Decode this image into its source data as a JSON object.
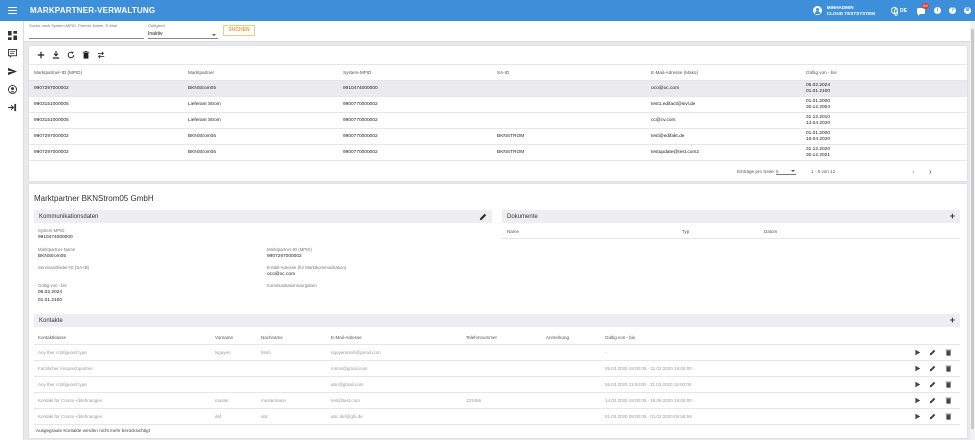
{
  "header": {
    "title": "MARKPARTNER-VERWALTUNG",
    "user_name": "MINHADMIN",
    "user_system": "CLOUD TESTSYSTEM",
    "language": "DE",
    "notification_count": "64"
  },
  "filter": {
    "search_label": "Suche nach System-MPID, Partner-Name, E-Mail",
    "search_value": "",
    "validity_label": "Gültigkeit",
    "validity_value": "Inaktiv",
    "search_button": "SUCHEN"
  },
  "grid": {
    "columns": [
      "Marktpartner-ID (MPID)",
      "Marktpartner",
      "System-MPID",
      "SA-ID",
      "E-Mail-Adresse (Mako)",
      "Gültig von - bis"
    ],
    "rows": [
      {
        "mpid": "9907297000002",
        "partner": "BKNStrom05",
        "system_mpid": "9910474000000",
        "sa_id": "",
        "email": "oco@oc.com",
        "valid_from": "06.02.2024",
        "valid_to": "01.01.2100"
      },
      {
        "mpid": "9903151000005",
        "partner": "Lieferant Strom",
        "system_mpid": "9900770000002",
        "sa_id": "",
        "email": "test1.edifact@sivl.de",
        "valid_from": "01.01.2000",
        "valid_to": "30.12.2004"
      },
      {
        "mpid": "9903151000005",
        "partner": "Lieferant Strom",
        "system_mpid": "9900770000002",
        "sa_id": "",
        "email": "cc@cv.com",
        "valid_from": "31.12.2010",
        "valid_to": "14.04.2020"
      },
      {
        "mpid": "9907297000002",
        "partner": "BKNStrom05",
        "system_mpid": "9900770000002",
        "sa_id": "BKNSTROM",
        "email": "test@edifakt.de",
        "valid_from": "01.01.2000",
        "valid_to": "16.04.2020"
      },
      {
        "mpid": "9907297000002",
        "partner": "BKNStrom05",
        "system_mpid": "9900770000002",
        "sa_id": "BKNSTROM",
        "email": "testupdate@test.com2",
        "valid_from": "31.12.2020",
        "valid_to": "30.12.2021"
      }
    ],
    "pager": {
      "per_page_label": "Einträge pro Seite:",
      "per_page_value": "5",
      "range": "1 - 5 von 12"
    }
  },
  "detail": {
    "title": "Marktpartner BKNStrom05 GmbH",
    "comm_header": "Kommunikationsdaten",
    "fields": {
      "system_mpid_label": "System-MPID",
      "system_mpid_value": "9910474000000",
      "partner_name_label": "Marktpartner-Name",
      "partner_name_value": "BKNStrom05",
      "partner_id_label": "Marktpartner-ID (MPID)",
      "partner_id_value": "9907297000002",
      "sa_label": "Serviceanbieter-ID (SA-ID)",
      "sa_value": "",
      "email_label": "E-Mail-Adresse (für Marktkommunikation)",
      "email_value": "oco@oc.com",
      "valid_label": "Gültig von - bis",
      "valid_from": "06.02.2024",
      "valid_to": "01.01.2100",
      "rules_label": "Kommunikationsvorgaben"
    },
    "docs_header": "Dokumente",
    "docs_columns": [
      "Name",
      "Typ",
      "Datum"
    ],
    "contacts_header": "Kontakte",
    "contacts_columns": [
      "Kontaktklasse",
      "Vorname",
      "Nachname",
      "E-Mail-Adresse",
      "Telefonnummer",
      "Anmerkung",
      "Gültig von - bis"
    ],
    "contacts": [
      {
        "cls": "Any ther configured type",
        "first": "Nguyen",
        "last": "Minh",
        "email": "nguyenminh@gmail.com",
        "phone": "",
        "note": "",
        "valid": "-"
      },
      {
        "cls": "Fachlicher Ansprechpartner",
        "first": "",
        "last": "",
        "email": "mmm@gmail.com",
        "phone": "",
        "note": "",
        "valid": "25.03.2020 19:00:00 - 31.03.2020 19:00:00"
      },
      {
        "cls": "Any ther configured type",
        "first": "",
        "last": "",
        "email": "abc@gmail.com",
        "phone": "",
        "note": "",
        "valid": "26.03.2020 11:00:00 - 31.03.2020 19:00:00"
      },
      {
        "cls": "Kontakt für Comm-Ablehnungen",
        "first": "muster",
        "last": "mustermann",
        "email": "test@test.com",
        "phone": "123456",
        "note": "",
        "valid": "14.03.2020 19:00:00 - 19.06.2020 19:00:00"
      },
      {
        "cls": "Kontakt für Comm-Ablehnungen",
        "first": "def",
        "last": "abc",
        "email": "abc.def@ghi.de",
        "phone": "",
        "note": "",
        "valid": "01.03.2020 09:00:00 - 01.03.2020 09:59:59"
      }
    ],
    "footnote": "Ausgegraute Kontakte werden nicht mehr berücksichtigt"
  },
  "colors": {
    "primary": "#3e8fd9",
    "accent": "#e6a23c",
    "badge": "#e53935"
  }
}
